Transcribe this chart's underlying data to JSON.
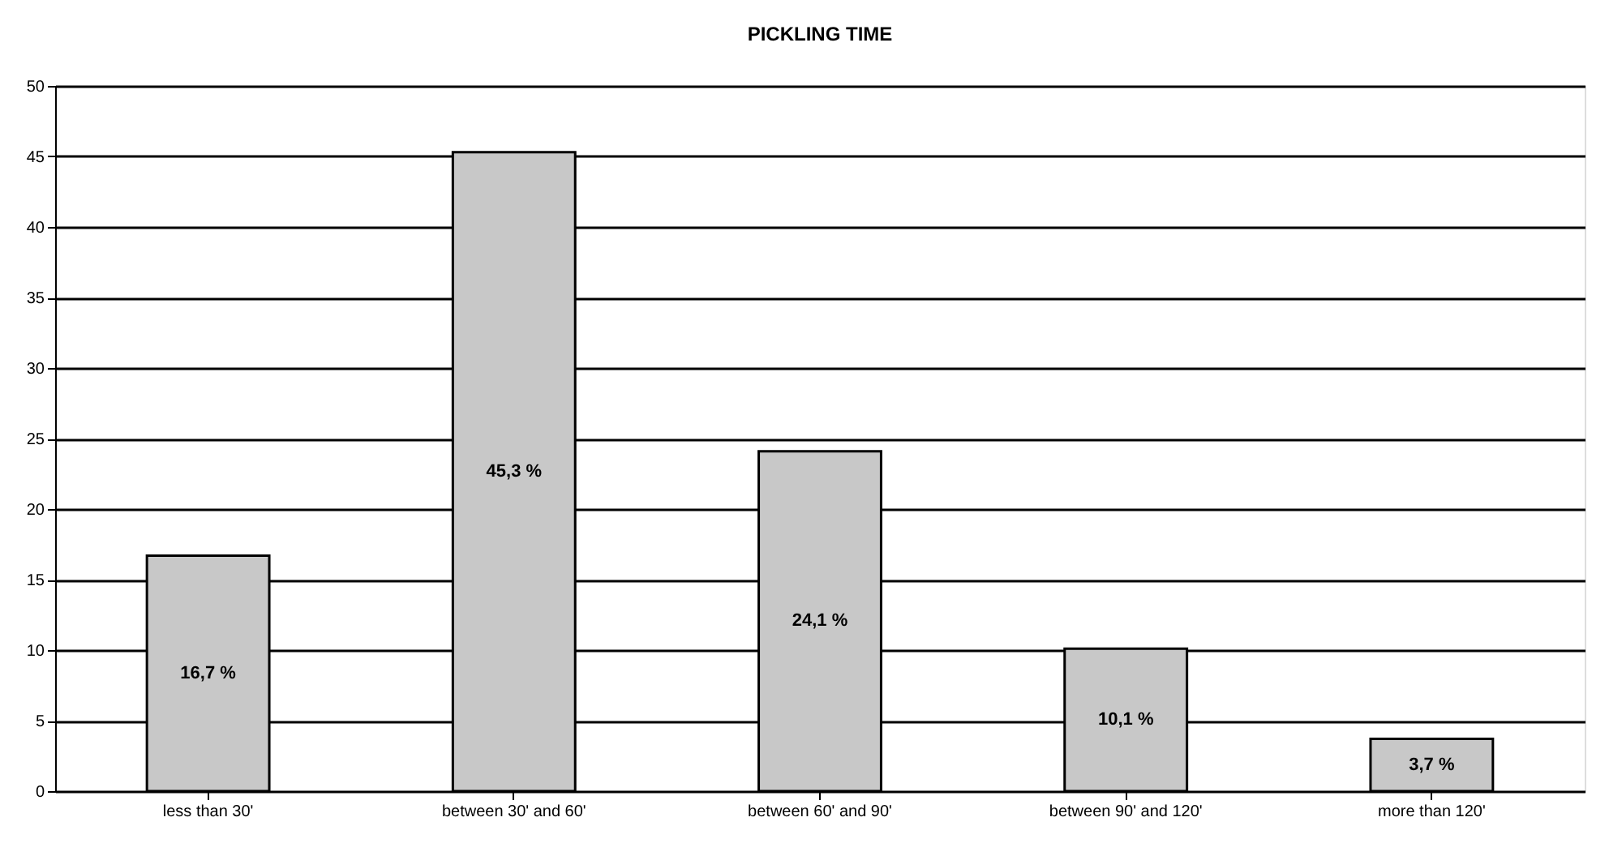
{
  "chart_data": {
    "type": "bar",
    "title": "PICKLING TIME",
    "categories": [
      "less than 30'",
      "between 30' and 60'",
      "between 60' and 90'",
      "between 90' and 120'",
      "more than 120'"
    ],
    "values": [
      16.7,
      45.3,
      24.1,
      10.1,
      3.7
    ],
    "value_labels": [
      "16,7 %",
      "45,3 %",
      "24,1 %",
      "10,1 %",
      "3,7 %"
    ],
    "color": "#c8c8c8",
    "ylim": [
      0,
      50
    ],
    "yticks": [
      0,
      5,
      10,
      15,
      20,
      25,
      30,
      35,
      40,
      45,
      50
    ],
    "grid": "y"
  }
}
